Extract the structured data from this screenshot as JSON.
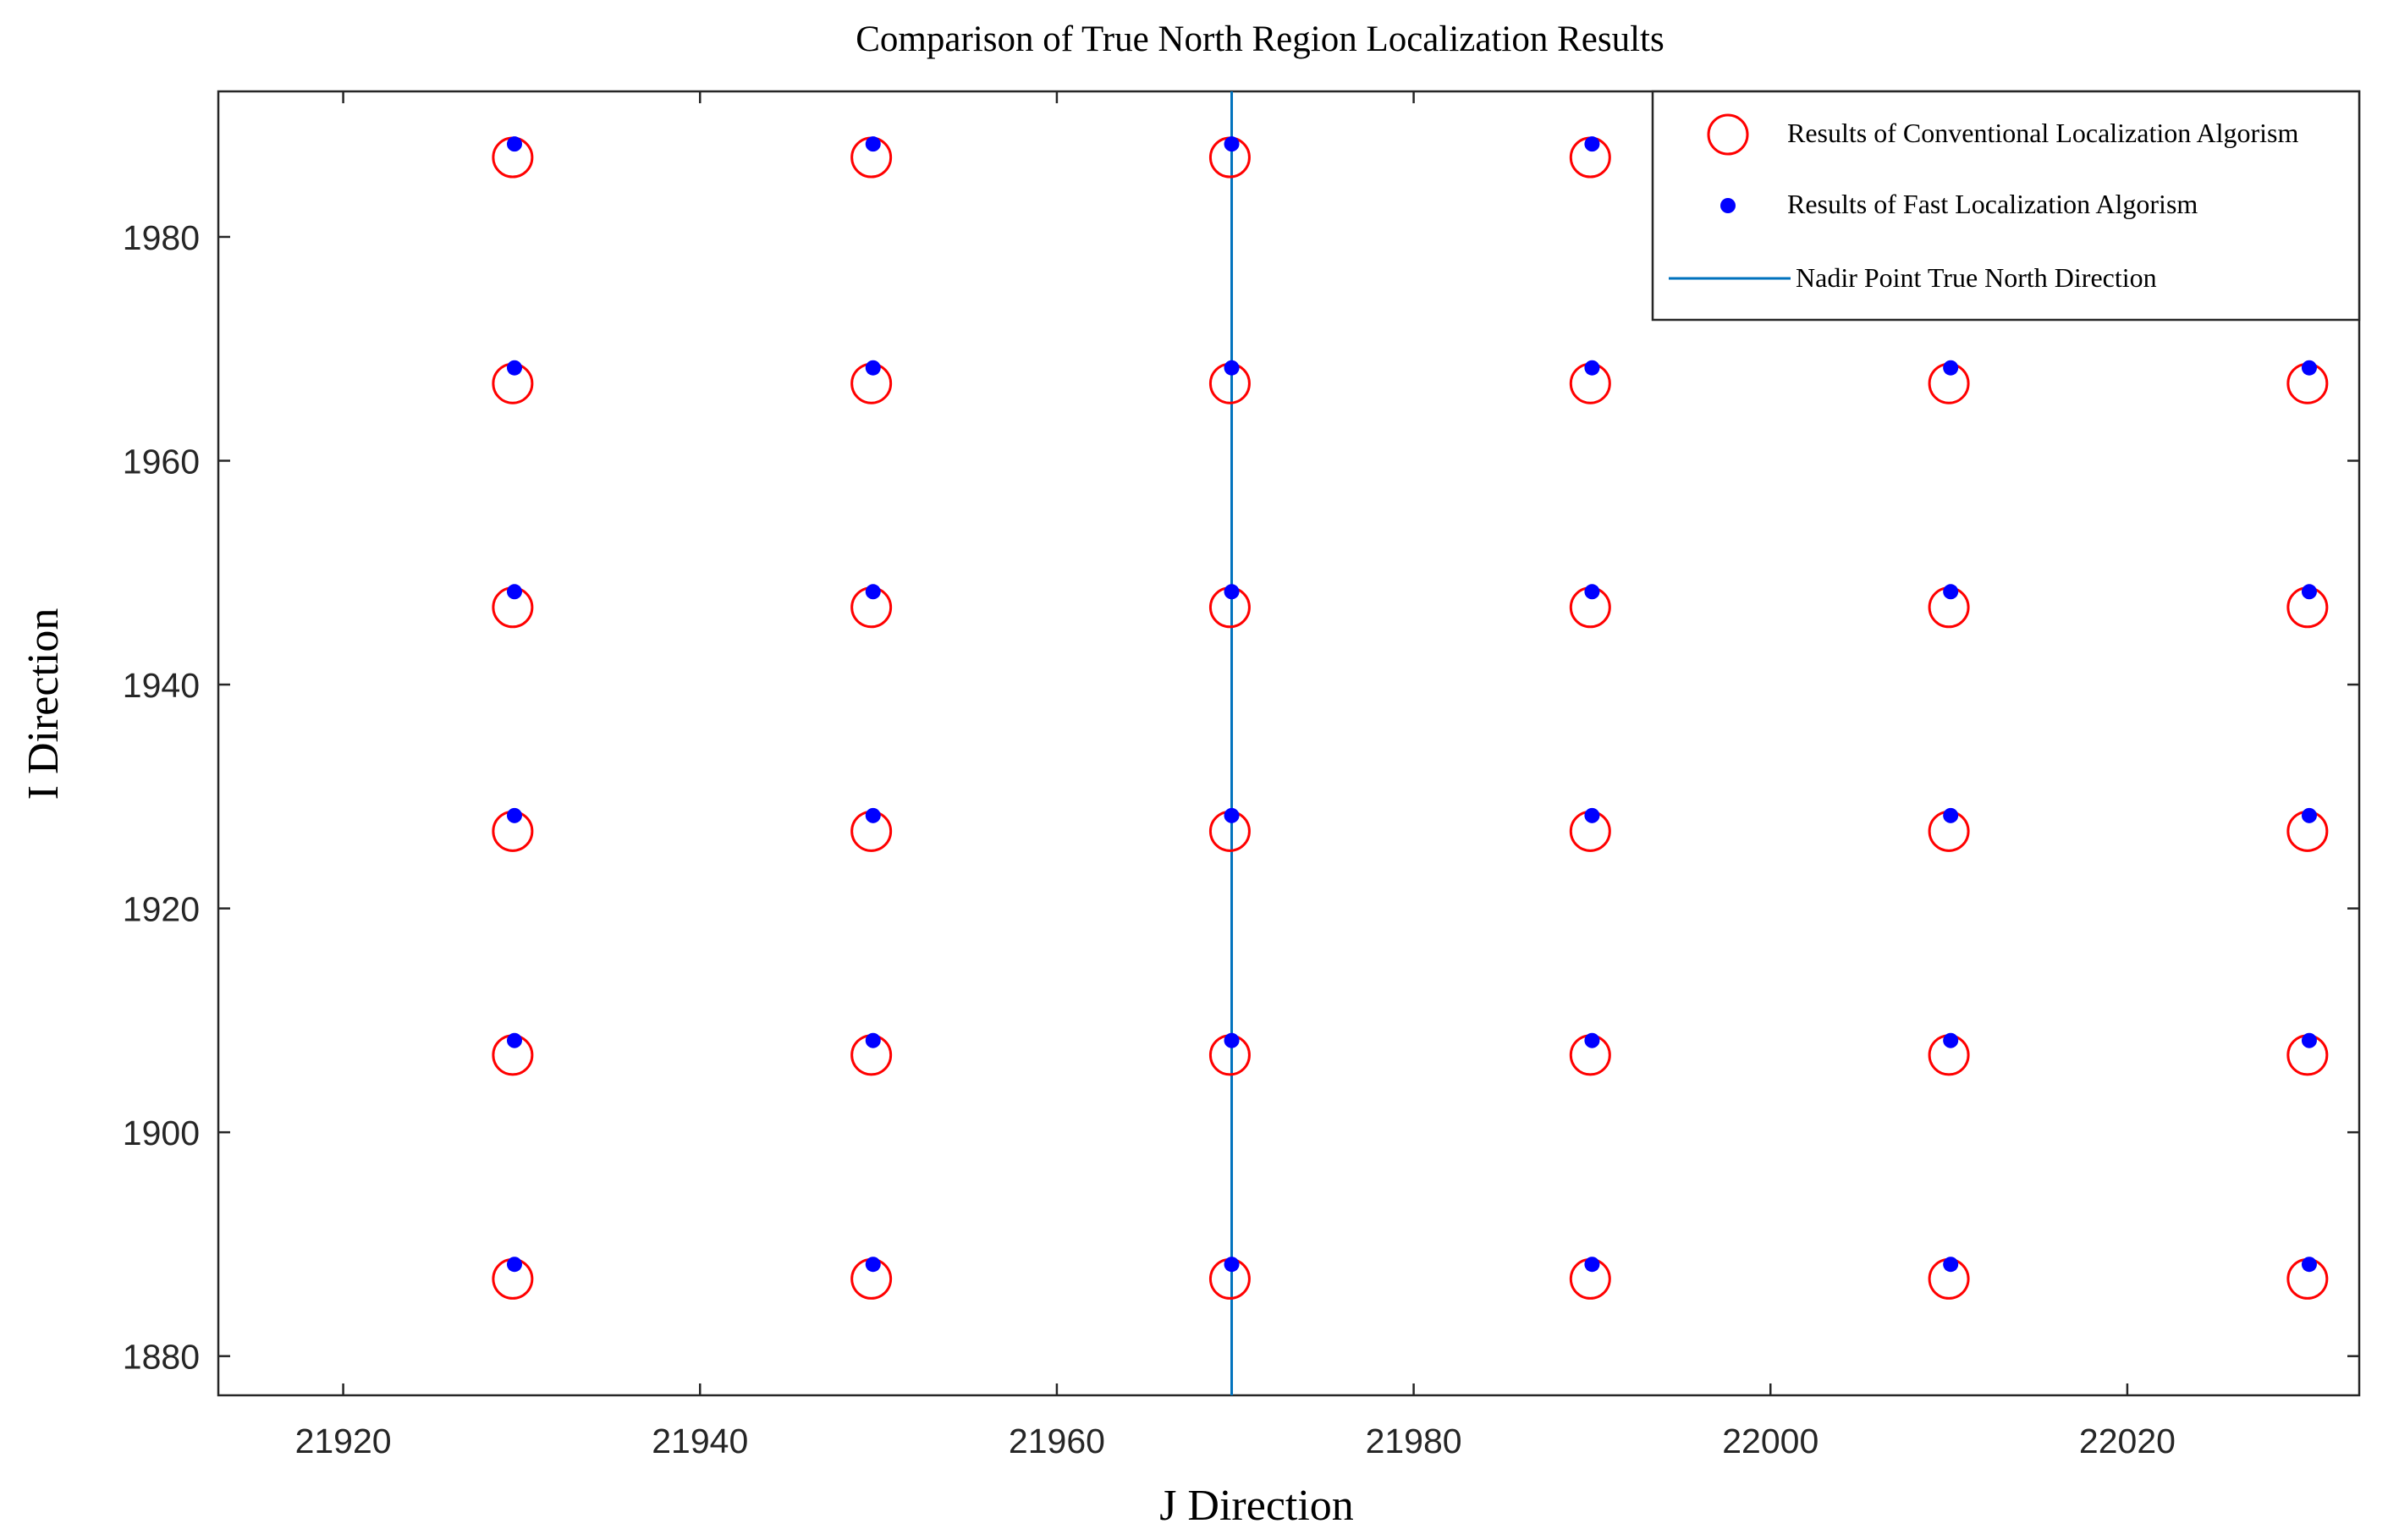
{
  "chart_data": {
    "type": "scatter",
    "title": "Comparison of True North Region Localization Results",
    "xlabel": "J Direction",
    "ylabel": "I Direction",
    "xlim": [
      21913,
      22033
    ],
    "ylim": [
      1876.5,
      1993
    ],
    "xticks": [
      21920,
      21940,
      21960,
      21980,
      22000,
      22020
    ],
    "yticks": [
      1880,
      1900,
      1920,
      1940,
      1960,
      1980
    ],
    "xtick_labels": [
      "21920",
      "21940",
      "21960",
      "21980",
      "22000",
      "22020"
    ],
    "ytick_labels": [
      "1880",
      "1900",
      "1920",
      "1940",
      "1960",
      "1980"
    ],
    "grid": false,
    "legend_position": "top-right",
    "series": [
      {
        "name": "Results of Conventional Localization Algorism",
        "marker": "open-circle",
        "color": "#ff0000",
        "x": [
          21929.5,
          21949.6,
          21969.7,
          21989.9,
          21929.5,
          21949.6,
          21969.7,
          21989.9,
          22010.0,
          22030.1,
          21929.5,
          21949.6,
          21969.7,
          21989.9,
          22010.0,
          22030.1,
          21929.5,
          21949.6,
          21969.7,
          21989.9,
          22010.0,
          22030.1,
          21929.5,
          21949.6,
          21969.7,
          21989.9,
          22010.0,
          22030.1,
          21929.5,
          21949.6,
          21969.7,
          21989.9,
          22010.0,
          22030.1
        ],
        "y": [
          1987.1,
          1987.1,
          1987.1,
          1987.1,
          1966.9,
          1966.9,
          1966.9,
          1966.9,
          1966.9,
          1966.9,
          1946.9,
          1946.9,
          1946.9,
          1946.9,
          1946.9,
          1946.9,
          1926.9,
          1926.9,
          1926.9,
          1926.9,
          1926.9,
          1926.9,
          1906.9,
          1906.9,
          1906.9,
          1906.9,
          1906.9,
          1906.9,
          1886.9,
          1886.9,
          1886.9,
          1886.9,
          1886.9,
          1886.9
        ]
      },
      {
        "name": "Results of  Fast Localization Algorism",
        "marker": "filled-dot",
        "color": "#0000ff",
        "x": [
          21929.6,
          21949.7,
          21969.8,
          21990.0,
          21929.6,
          21949.7,
          21969.8,
          21990.0,
          22010.1,
          22030.2,
          21929.6,
          21949.7,
          21969.8,
          21990.0,
          22010.1,
          22030.2,
          21929.6,
          21949.7,
          21969.8,
          21990.0,
          22010.1,
          22030.2,
          21929.6,
          21949.7,
          21969.8,
          21990.0,
          22010.1,
          22030.2,
          21929.6,
          21949.7,
          21969.8,
          21990.0,
          22010.1,
          22030.2
        ],
        "y": [
          1988.3,
          1988.3,
          1988.3,
          1988.3,
          1968.3,
          1968.3,
          1968.3,
          1968.3,
          1968.3,
          1968.3,
          1948.3,
          1948.3,
          1948.3,
          1948.3,
          1948.3,
          1948.3,
          1928.3,
          1928.3,
          1928.3,
          1928.3,
          1928.3,
          1928.3,
          1908.2,
          1908.2,
          1908.2,
          1908.2,
          1908.2,
          1908.2,
          1888.2,
          1888.2,
          1888.2,
          1888.2,
          1888.2,
          1888.2
        ]
      },
      {
        "name": "Nadir Point True North Direction",
        "marker": "line",
        "color": "#0072bd",
        "x": [
          21969.8,
          21969.8
        ],
        "y": [
          1876.5,
          1993
        ]
      }
    ]
  }
}
